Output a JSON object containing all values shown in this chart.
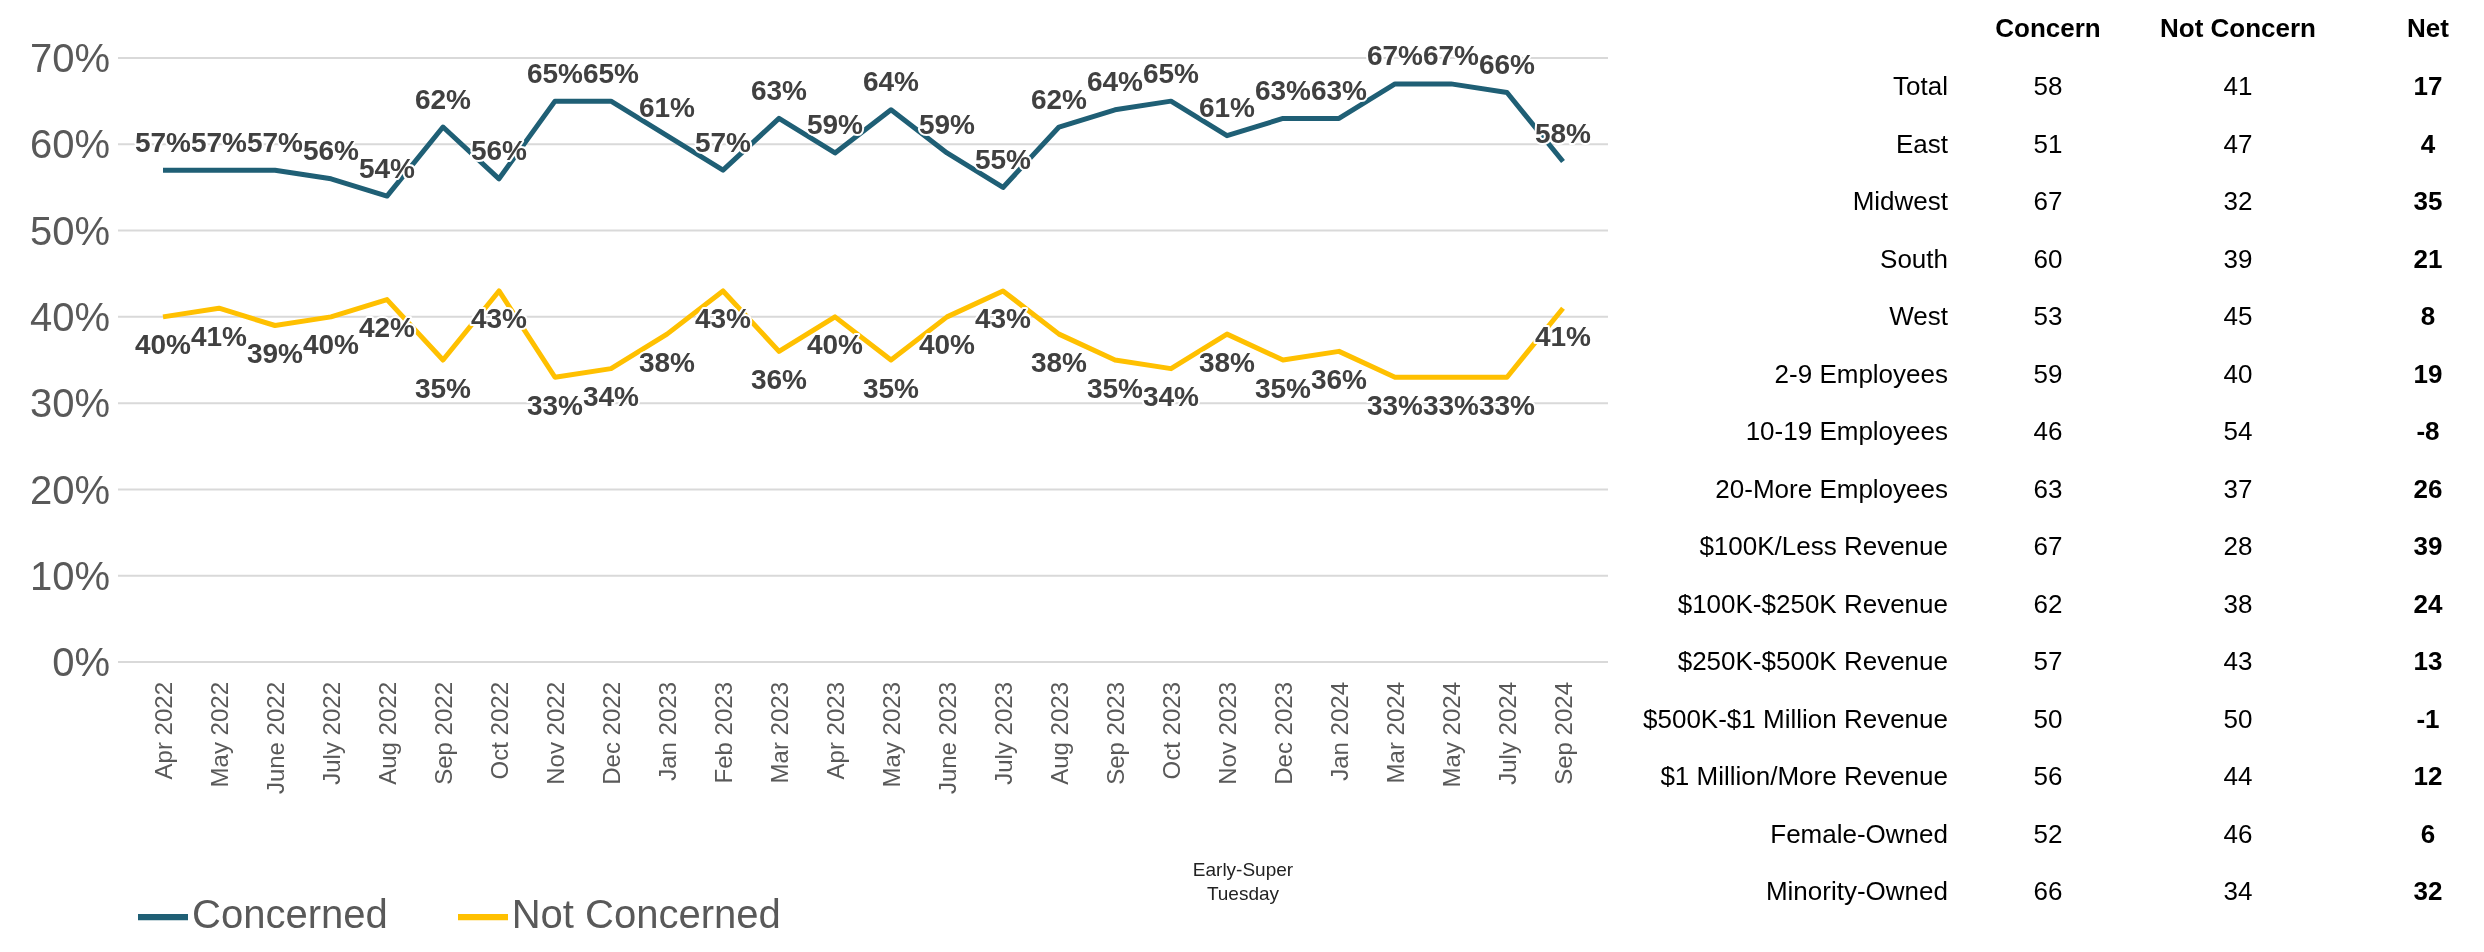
{
  "chart_data": [
    {
      "type": "line",
      "categories": [
        "Apr 2022",
        "May 2022",
        "June 2022",
        "July 2022",
        "Aug 2022",
        "Sep 2022",
        "Oct 2022",
        "Nov 2022",
        "Dec 2022",
        "Jan 2023",
        "Feb 2023",
        "Mar 2023",
        "Apr 2023",
        "May 2023",
        "June 2023",
        "July 2023",
        "Aug 2023",
        "Sep 2023",
        "Oct 2023",
        "Nov 2023",
        "Dec 2023",
        "Jan 2024",
        "Mar 2024",
        "May 2024",
        "July 2024",
        "Sep 2024"
      ],
      "series": [
        {
          "name": "Concerned",
          "color": "#1f5f75",
          "values": [
            57,
            57,
            57,
            56,
            54,
            62,
            56,
            65,
            65,
            61,
            57,
            63,
            59,
            64,
            59,
            55,
            62,
            64,
            65,
            61,
            63,
            63,
            67,
            67,
            66,
            58
          ],
          "value_labels": [
            "57%",
            "57%",
            "57%",
            "56%",
            "54%",
            "62%",
            "56%",
            "65%",
            "65%",
            "61%",
            "57%",
            "63%",
            "59%",
            "64%",
            "59%",
            "55%",
            "62%",
            "64%",
            "65%",
            "61%",
            "63%",
            "63%",
            "67%",
            "67%",
            "66%",
            "58%"
          ]
        },
        {
          "name": "Not Concerned",
          "color": "#ffc000",
          "values": [
            40,
            41,
            39,
            40,
            42,
            35,
            43,
            33,
            34,
            38,
            43,
            36,
            40,
            35,
            40,
            43,
            38,
            35,
            34,
            38,
            35,
            36,
            33,
            33,
            33,
            41
          ],
          "value_labels": [
            "40%",
            "41%",
            "39%",
            "40%",
            "42%",
            "35%",
            "43%",
            "33%",
            "34%",
            "38%",
            "43%",
            "36%",
            "40%",
            "35%",
            "40%",
            "43%",
            "38%",
            "35%",
            "34%",
            "38%",
            "35%",
            "36%",
            "33%",
            "33%",
            "33%",
            "41%"
          ]
        }
      ],
      "ylim": [
        0,
        70
      ],
      "yticks": [
        {
          "value": 0,
          "label": "0%"
        },
        {
          "value": 10,
          "label": "10%"
        },
        {
          "value": 20,
          "label": "20%"
        },
        {
          "value": 30,
          "label": "30%"
        },
        {
          "value": 40,
          "label": "40%"
        },
        {
          "value": 50,
          "label": "50%"
        },
        {
          "value": 60,
          "label": "60%"
        },
        {
          "value": 70,
          "label": "70%"
        }
      ],
      "grid": "y",
      "legend": "bottom left",
      "marker": "none",
      "line_style": "solid",
      "annotations": [
        "Early-Super Tuesday"
      ]
    },
    {
      "type": "other",
      "categories": [
        "Total",
        "East",
        "Midwest",
        "South",
        "West",
        "2-9 Employees",
        "10-19 Employees",
        "20-More Employees",
        "$100K/Less Revenue",
        "$100K-$250K Revenue",
        "$250K-$500K Revenue",
        "$500K-$1 Million Revenue",
        "$1 Million/More Revenue",
        "Female-Owned",
        "Minority-Owned"
      ],
      "series": [
        {
          "name": "Concern",
          "values": [
            58,
            51,
            67,
            60,
            53,
            59,
            46,
            63,
            67,
            62,
            57,
            50,
            56,
            52,
            66
          ]
        },
        {
          "name": "Not Concern",
          "values": [
            41,
            47,
            32,
            39,
            45,
            40,
            54,
            37,
            28,
            38,
            43,
            50,
            44,
            46,
            34
          ]
        },
        {
          "name": "Net",
          "values": [
            17,
            4,
            35,
            21,
            8,
            19,
            -8,
            26,
            39,
            24,
            13,
            -1,
            12,
            6,
            32
          ]
        }
      ],
      "data_labels": true
    }
  ]
}
